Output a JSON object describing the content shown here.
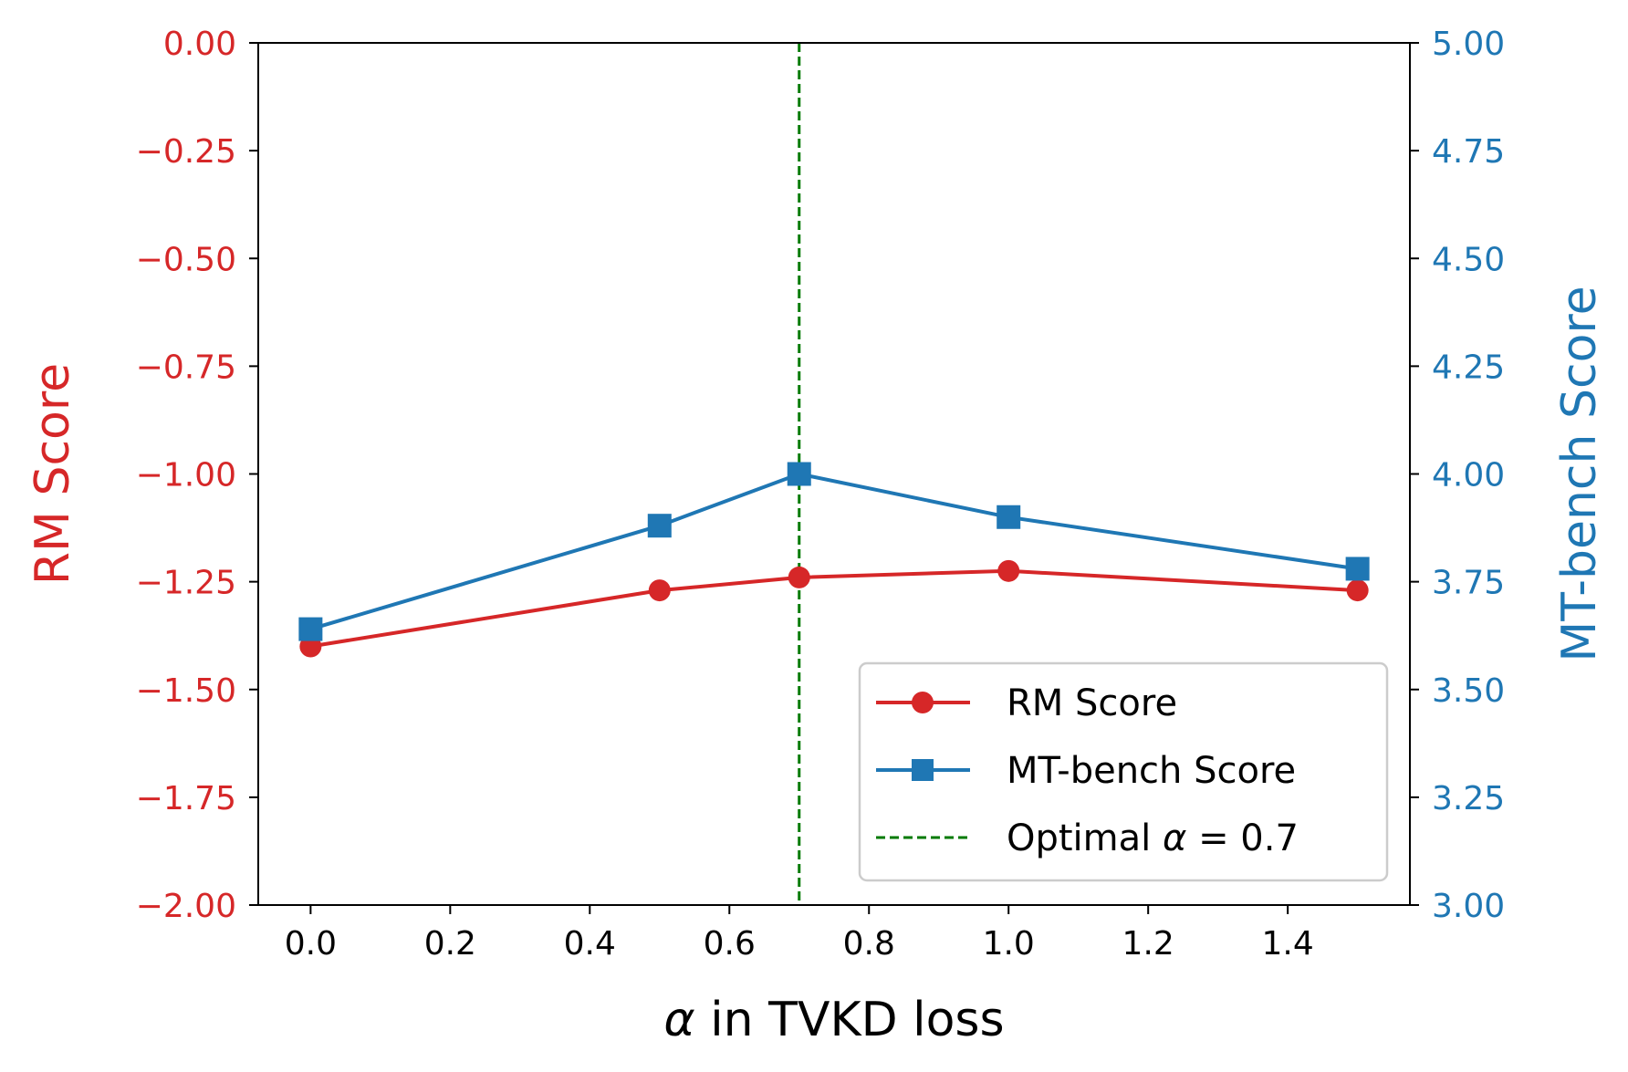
{
  "chart_data": {
    "type": "line",
    "title": "",
    "xlabel_prefix": "α",
    "xlabel_rest": " in TVKD loss",
    "ylabel_left": "RM Score",
    "ylabel_right": "MT-bench Score",
    "xlim": [
      -0.075,
      1.575
    ],
    "ylim_left": [
      -2.0,
      0.0
    ],
    "ylim_right": [
      3.0,
      5.0
    ],
    "x_ticks": [
      0.0,
      0.2,
      0.4,
      0.6,
      0.8,
      1.0,
      1.2,
      1.4
    ],
    "x_tick_labels": [
      "0.0",
      "0.2",
      "0.4",
      "0.6",
      "0.8",
      "1.0",
      "1.2",
      "1.4"
    ],
    "y_left_ticks": [
      0.0,
      -0.25,
      -0.5,
      -0.75,
      -1.0,
      -1.25,
      -1.5,
      -1.75,
      -2.0
    ],
    "y_left_tick_labels": [
      "0.00",
      "−0.25",
      "−0.50",
      "−0.75",
      "−1.00",
      "−1.25",
      "−1.50",
      "−1.75",
      "−2.00"
    ],
    "y_right_ticks": [
      5.0,
      4.75,
      4.5,
      4.25,
      4.0,
      3.75,
      3.5,
      3.25,
      3.0
    ],
    "y_right_tick_labels": [
      "5.00",
      "4.75",
      "4.50",
      "4.25",
      "4.00",
      "3.75",
      "3.50",
      "3.25",
      "3.00"
    ],
    "series": [
      {
        "name": "RM Score",
        "axis": "left",
        "marker": "circle",
        "color": "#d62728",
        "x": [
          0.0,
          0.5,
          0.7,
          1.0,
          1.5
        ],
        "values": [
          -1.4,
          -1.27,
          -1.24,
          -1.225,
          -1.27
        ]
      },
      {
        "name": "MT-bench Score",
        "axis": "right",
        "marker": "square",
        "color": "#1f77b4",
        "x": [
          0.0,
          0.5,
          0.7,
          1.0,
          1.5
        ],
        "values": [
          3.64,
          3.88,
          4.0,
          3.9,
          3.78
        ]
      }
    ],
    "reference_line": {
      "x": 0.7,
      "color": "#007a00",
      "style": "dashed",
      "legend_prefix": "Optimal ",
      "legend_alpha": "α",
      "legend_suffix": " = 0.7"
    },
    "legend_position": "lower-right",
    "grid": false,
    "colors": {
      "left_axis": "#d62728",
      "right_axis": "#1f77b4",
      "frame": "#000000"
    }
  }
}
